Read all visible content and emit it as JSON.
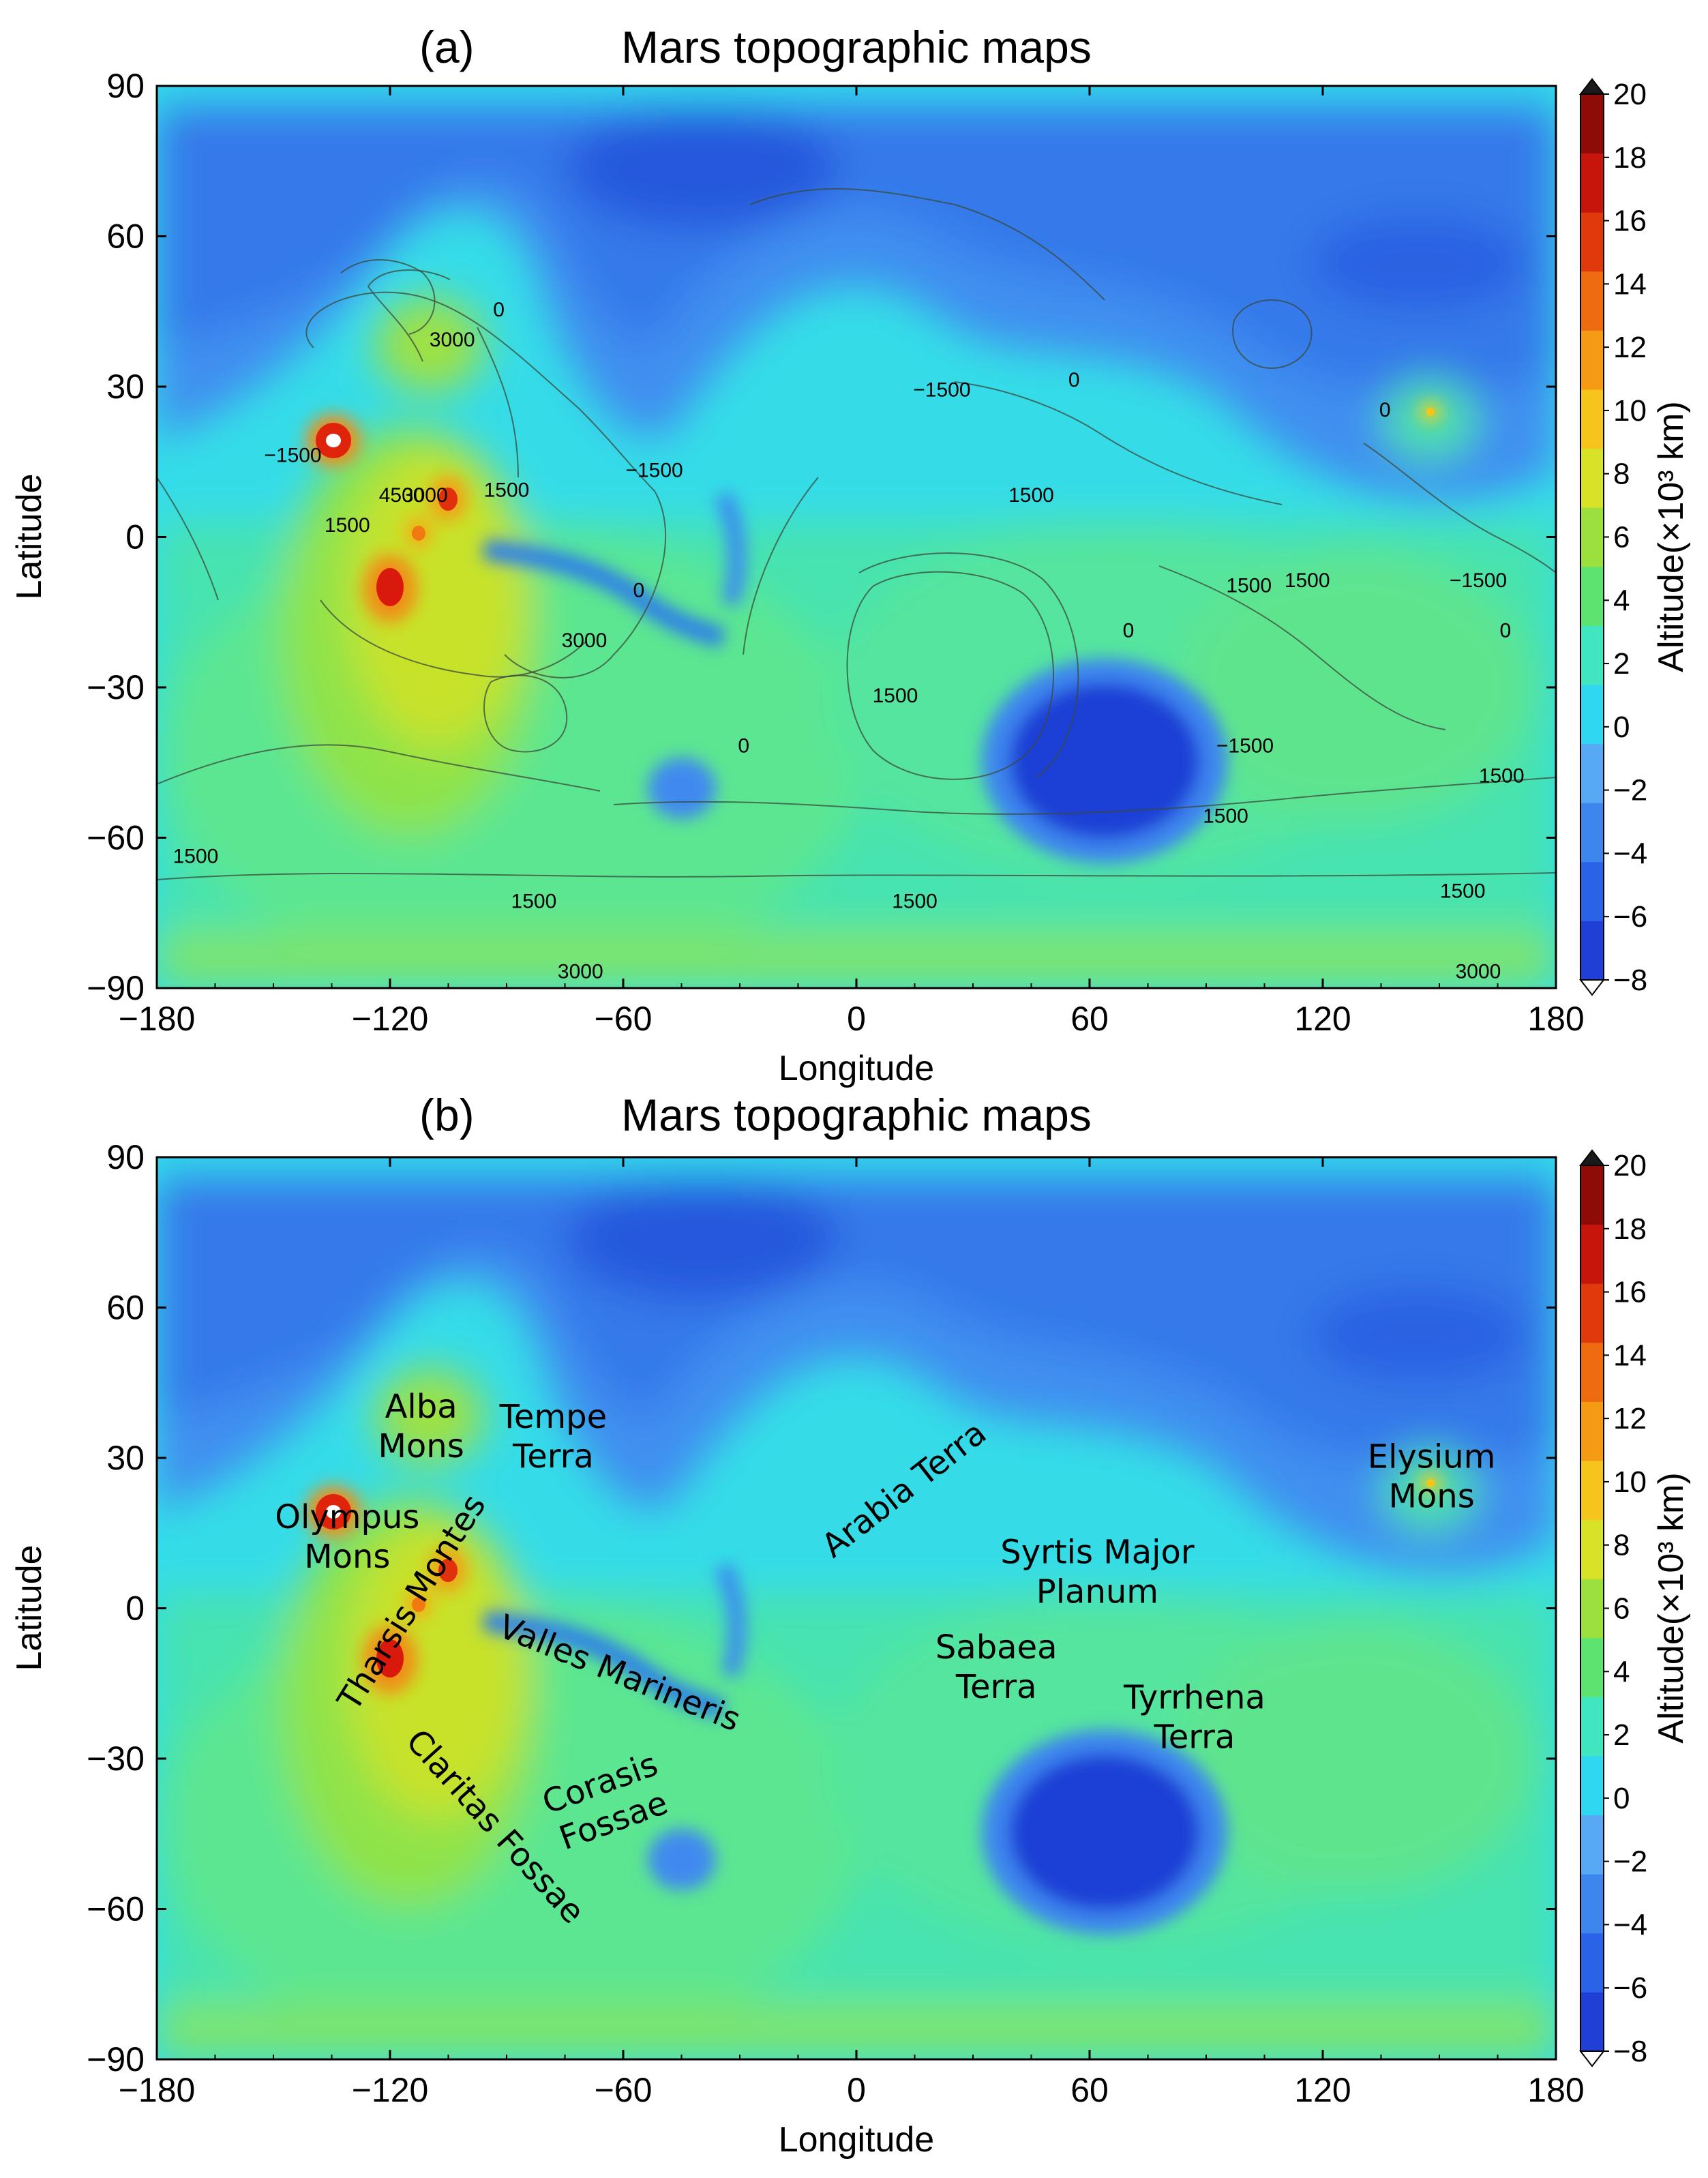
{
  "chart_data": [
    {
      "type": "heatmap",
      "panel_label": "(a)",
      "title": "Mars topographic maps",
      "xlabel": "Longitude",
      "ylabel": "Latitude",
      "xlim": [
        -180,
        180
      ],
      "ylim": [
        -90,
        90
      ],
      "xticks": [
        "−180",
        "−120",
        "−60",
        "0",
        "60",
        "120",
        "180"
      ],
      "yticks": [
        "90",
        "60",
        "30",
        "0",
        "−30",
        "−60",
        "−90"
      ],
      "colorbar": {
        "label": "Altitude(×10³ km)",
        "ticks": [
          "20",
          "18",
          "16",
          "14",
          "12",
          "10",
          "8",
          "6",
          "4",
          "2",
          "0",
          "−2",
          "−4",
          "−6",
          "−8"
        ],
        "range": [
          -8,
          20
        ],
        "colors": [
          "#1f3fd6",
          "#2a62e8",
          "#3c86ee",
          "#56a9f2",
          "#2fd8f0",
          "#3fe6c0",
          "#5de36f",
          "#9be03c",
          "#d8e226",
          "#f5c51b",
          "#f59a13",
          "#ef6b0f",
          "#e03a0c",
          "#c7150b",
          "#8e0b06"
        ]
      },
      "contour_labels": [
        {
          "text": "0",
          "lon": -92,
          "lat": 44
        },
        {
          "text": "3000",
          "lon": -104,
          "lat": 38
        },
        {
          "text": "−1500",
          "lon": -145,
          "lat": 15
        },
        {
          "text": "4500",
          "lon": -117,
          "lat": 7
        },
        {
          "text": "3000",
          "lon": -111,
          "lat": 7
        },
        {
          "text": "1500",
          "lon": -90,
          "lat": 8
        },
        {
          "text": "1500",
          "lon": -131,
          "lat": 1
        },
        {
          "text": "−1500",
          "lon": -52,
          "lat": 12
        },
        {
          "text": "0",
          "lon": -56,
          "lat": -12
        },
        {
          "text": "3000",
          "lon": -70,
          "lat": -22
        },
        {
          "text": "−1500",
          "lon": 22,
          "lat": 28
        },
        {
          "text": "0",
          "lon": 56,
          "lat": 30
        },
        {
          "text": "1500",
          "lon": 45,
          "lat": 7
        },
        {
          "text": "0",
          "lon": 136,
          "lat": 24
        },
        {
          "text": "1500",
          "lon": 101,
          "lat": -11
        },
        {
          "text": "1500",
          "lon": 116,
          "lat": -10
        },
        {
          "text": "−1500",
          "lon": 160,
          "lat": -10
        },
        {
          "text": "0",
          "lon": 167,
          "lat": -20
        },
        {
          "text": "0",
          "lon": 70,
          "lat": -20
        },
        {
          "text": "1500",
          "lon": 10,
          "lat": -33
        },
        {
          "text": "−1500",
          "lon": 100,
          "lat": -43
        },
        {
          "text": "0",
          "lon": -29,
          "lat": -43
        },
        {
          "text": "1500",
          "lon": 95,
          "lat": -57
        },
        {
          "text": "1500",
          "lon": 166,
          "lat": -49
        },
        {
          "text": "1500",
          "lon": -170,
          "lat": -65
        },
        {
          "text": "1500",
          "lon": -83,
          "lat": -74
        },
        {
          "text": "1500",
          "lon": 15,
          "lat": -74
        },
        {
          "text": "1500",
          "lon": 156,
          "lat": -72
        },
        {
          "text": "3000",
          "lon": -71,
          "lat": -88
        },
        {
          "text": "3000",
          "lon": 160,
          "lat": -88
        }
      ]
    },
    {
      "type": "heatmap",
      "panel_label": "(b)",
      "title": "Mars topographic maps",
      "xlabel": "Longitude",
      "ylabel": "Latitude",
      "xlim": [
        -180,
        180
      ],
      "ylim": [
        -90,
        90
      ],
      "xticks": [
        "−180",
        "−120",
        "−60",
        "0",
        "60",
        "120",
        "180"
      ],
      "yticks": [
        "90",
        "60",
        "30",
        "0",
        "−30",
        "−60",
        "−90"
      ],
      "colorbar": {
        "label": "Altitude(×10³ km)",
        "ticks": [
          "20",
          "18",
          "16",
          "14",
          "12",
          "10",
          "8",
          "6",
          "4",
          "2",
          "0",
          "−2",
          "−4",
          "−6",
          "−8"
        ],
        "range": [
          -8,
          20
        ]
      },
      "feature_labels": [
        {
          "lines": [
            "Alba",
            "Mons"
          ],
          "lon": -112,
          "lat": 38
        },
        {
          "lines": [
            "Tempe",
            "Terra"
          ],
          "lon": -78,
          "lat": 36
        },
        {
          "lines": [
            "Olympus",
            "Mons"
          ],
          "lon": -131,
          "lat": 16
        },
        {
          "lines": [
            "Tharsis Montes"
          ],
          "lon": -112,
          "lat": 0,
          "rotate": -58
        },
        {
          "lines": [
            "Valles Marineris"
          ],
          "lon": -62,
          "lat": -15,
          "rotate": 22
        },
        {
          "lines": [
            "Claritas Fossae"
          ],
          "lon": -95,
          "lat": -45,
          "rotate": 48
        },
        {
          "lines": [
            "Corasis",
            "Fossae"
          ],
          "lon": -65,
          "lat": -37,
          "rotate": -20
        },
        {
          "lines": [
            "Arabia  Terra"
          ],
          "lon": 14,
          "lat": 22,
          "rotate": -38
        },
        {
          "lines": [
            "Syrtis Major",
            "Planum"
          ],
          "lon": 62,
          "lat": 9
        },
        {
          "lines": [
            "Sabaea",
            "Terra"
          ],
          "lon": 36,
          "lat": -10
        },
        {
          "lines": [
            "Tyrrhena",
            "Terra"
          ],
          "lon": 87,
          "lat": -20
        },
        {
          "lines": [
            "Elysium",
            "Mons"
          ],
          "lon": 148,
          "lat": 28
        }
      ]
    }
  ]
}
